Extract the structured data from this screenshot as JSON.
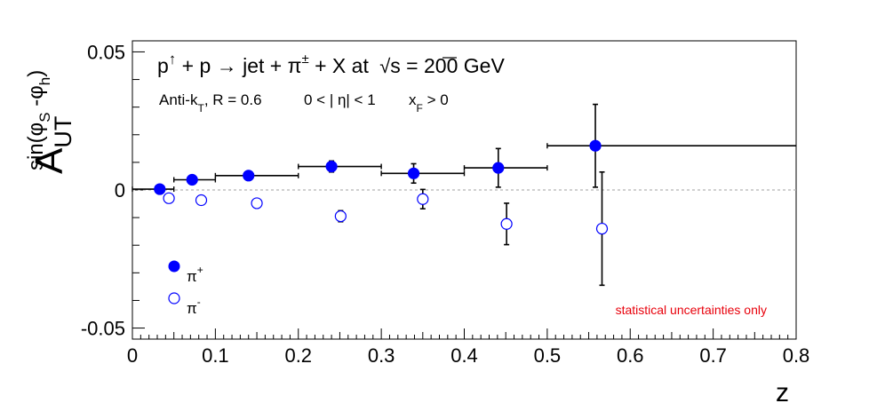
{
  "chart_data": {
    "type": "scatter",
    "title": {
      "p": "p",
      "arrow_up": "↑",
      "plus1": " + p ",
      "reaction_arrow": "→",
      "jet": " jet + π",
      "pm": "±",
      "x_at": " + X at ",
      "sqrt": "√",
      "s_energy": "s = 200 GeV"
    },
    "subtitle": {
      "antik": "Anti-k",
      "t_sub": "T",
      "radius": ", R = 0.6",
      "eta": "0 < | η| < 1",
      "xf": "x",
      "f_sub": "F",
      "xf_cut": " > 0"
    },
    "xlabel": "z",
    "ylabel": {
      "sin_pre": "sin(φ",
      "s_sub": "S",
      "mid": " -φ",
      "h_sub": "h",
      "close": ")",
      "A": "A",
      "ut_sub": "UT"
    },
    "xlim": [
      0,
      0.8
    ],
    "ylim": [
      -0.054,
      0.054
    ],
    "x_ticks": [
      "0",
      "0.1",
      "0.2",
      "0.3",
      "0.4",
      "0.5",
      "0.6",
      "0.7",
      "0.8"
    ],
    "y_ticks": [
      "-0.05",
      "0",
      "0.05"
    ],
    "annotation": "statistical uncertainties only",
    "annotation_color": "#e8000b",
    "marker_color": "#0000ff",
    "zero_line_color": "#b4b4b4",
    "legend_position": "bottom-left",
    "series": [
      {
        "name": "π",
        "sup": "+",
        "marker": "filled-circle",
        "points": [
          {
            "x": 0.033,
            "y": 0.0003,
            "yerr": 0.0008,
            "xlo": 0.0,
            "xhi": 0.05
          },
          {
            "x": 0.072,
            "y": 0.0037,
            "yerr": 0.001,
            "xlo": 0.05,
            "xhi": 0.1
          },
          {
            "x": 0.14,
            "y": 0.0052,
            "yerr": 0.0012,
            "xlo": 0.1,
            "xhi": 0.2
          },
          {
            "x": 0.24,
            "y": 0.0085,
            "yerr": 0.002,
            "xlo": 0.2,
            "xhi": 0.3
          },
          {
            "x": 0.339,
            "y": 0.006,
            "yerr": 0.0035,
            "xlo": 0.3,
            "xhi": 0.4
          },
          {
            "x": 0.441,
            "y": 0.008,
            "yerr": 0.007,
            "xlo": 0.4,
            "xhi": 0.5
          },
          {
            "x": 0.558,
            "y": 0.016,
            "yerr": 0.015,
            "xlo": 0.5,
            "xhi": 0.8
          }
        ]
      },
      {
        "name": "π",
        "sup": "-",
        "marker": "open-circle",
        "points": [
          {
            "x": 0.044,
            "y": -0.003,
            "yerr": 0.0008
          },
          {
            "x": 0.083,
            "y": -0.0037,
            "yerr": 0.001
          },
          {
            "x": 0.15,
            "y": -0.0048,
            "yerr": 0.0012
          },
          {
            "x": 0.251,
            "y": -0.0095,
            "yerr": 0.002
          },
          {
            "x": 0.35,
            "y": -0.0033,
            "yerr": 0.0035
          },
          {
            "x": 0.451,
            "y": -0.0123,
            "yerr": 0.0075
          },
          {
            "x": 0.566,
            "y": -0.014,
            "yerr": 0.0205
          }
        ]
      }
    ]
  }
}
